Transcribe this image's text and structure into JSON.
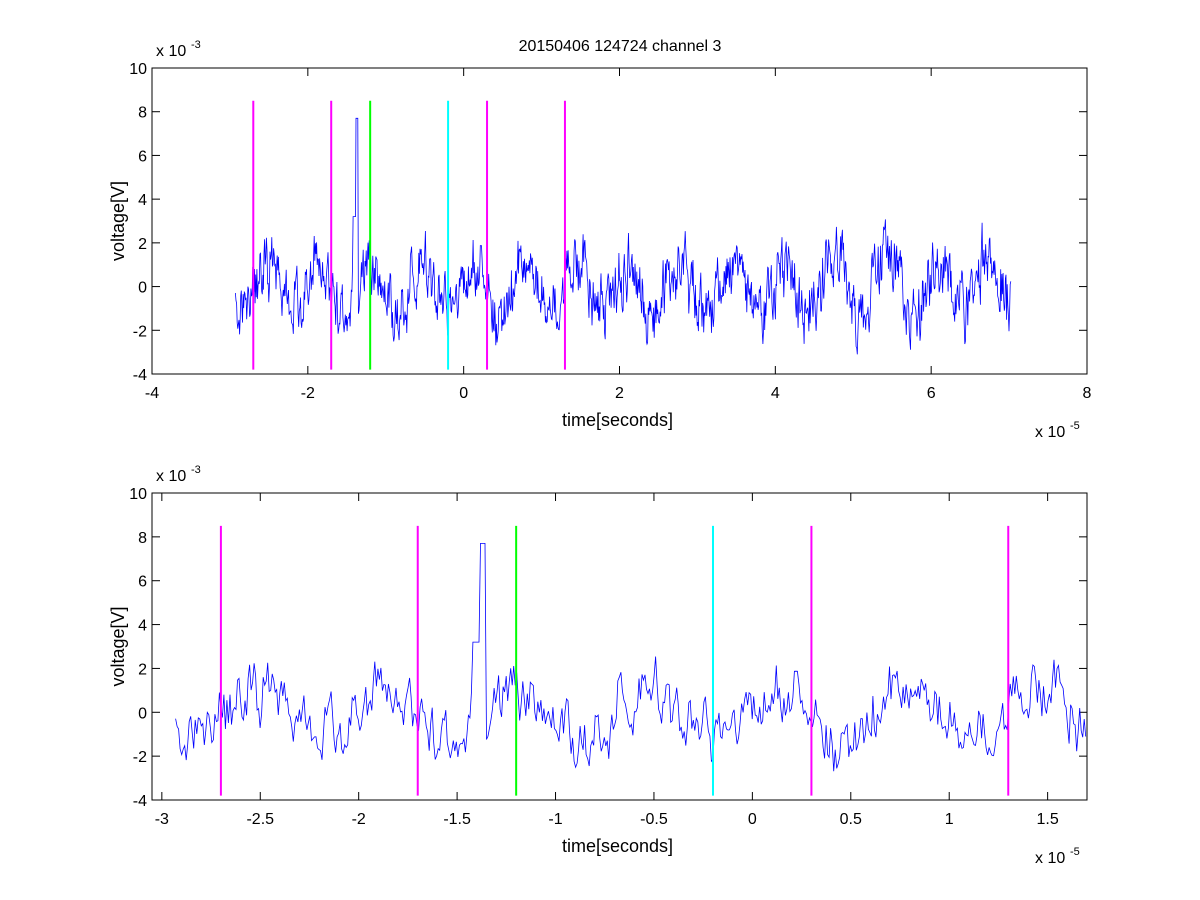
{
  "figure": {
    "title": "20150406 124724 channel 3"
  },
  "chart_data": [
    {
      "type": "line",
      "xlabel": "time[seconds]",
      "ylabel": "voltage[V]",
      "x_exponent_label": "x 10",
      "x_exponent": "-5",
      "y_exponent_label": "x 10",
      "y_exponent": "-3",
      "xlim": [
        -4,
        8
      ],
      "ylim": [
        -4,
        10
      ],
      "xticks": [
        -4,
        -2,
        0,
        2,
        4,
        6,
        8
      ],
      "xtick_labels": [
        "-4",
        "-2",
        "0",
        "2",
        "4",
        "6",
        "8"
      ],
      "yticks": [
        -4,
        -2,
        0,
        2,
        4,
        6,
        8,
        10
      ],
      "ytick_labels": [
        "-4",
        "-2",
        "0",
        "2",
        "4",
        "6",
        "8",
        "10"
      ],
      "grid": false,
      "series": [
        {
          "color": "#0000ff",
          "x_range": [
            -2.93,
            7.03
          ],
          "y_range": [
            -3.5,
            7.7
          ]
        }
      ],
      "markers": [
        {
          "x": -2.7,
          "color": "#ff00ff",
          "y_range": [
            -3.8,
            8.5
          ]
        },
        {
          "x": -1.7,
          "color": "#ff00ff",
          "y_range": [
            -3.8,
            8.5
          ]
        },
        {
          "x": -1.2,
          "color": "#00ff00",
          "y_range": [
            -3.8,
            8.5
          ]
        },
        {
          "x": -0.2,
          "color": "#00ffff",
          "y_range": [
            -3.8,
            8.5
          ]
        },
        {
          "x": 0.3,
          "color": "#ff00ff",
          "y_range": [
            -3.8,
            8.5
          ]
        },
        {
          "x": 1.3,
          "color": "#ff00ff",
          "y_range": [
            -3.8,
            8.5
          ]
        }
      ]
    },
    {
      "type": "line",
      "xlabel": "time[seconds]",
      "ylabel": "voltage[V]",
      "x_exponent_label": "x 10",
      "x_exponent": "-5",
      "y_exponent_label": "x 10",
      "y_exponent": "-3",
      "xlim": [
        -3.05,
        1.7
      ],
      "ylim": [
        -4,
        10
      ],
      "xticks": [
        -3,
        -2.5,
        -2,
        -1.5,
        -1,
        -0.5,
        0,
        0.5,
        1,
        1.5
      ],
      "xtick_labels": [
        "-3",
        "-2.5",
        "-2",
        "-1.5",
        "-1",
        "-0.5",
        "0",
        "0.5",
        "1",
        "1.5"
      ],
      "yticks": [
        -4,
        -2,
        0,
        2,
        4,
        6,
        8,
        10
      ],
      "ytick_labels": [
        "-4",
        "-2",
        "0",
        "2",
        "4",
        "6",
        "8",
        "10"
      ],
      "grid": false,
      "series": [
        {
          "color": "#0000ff",
          "x_range": [
            -2.95,
            1.7
          ],
          "y_range": [
            -3.3,
            7.7
          ]
        }
      ],
      "markers": [
        {
          "x": -2.7,
          "color": "#ff00ff",
          "y_range": [
            -3.8,
            8.5
          ]
        },
        {
          "x": -1.7,
          "color": "#ff00ff",
          "y_range": [
            -3.8,
            8.5
          ]
        },
        {
          "x": -1.2,
          "color": "#00ff00",
          "y_range": [
            -3.8,
            8.5
          ]
        },
        {
          "x": -0.2,
          "color": "#00ffff",
          "y_range": [
            -3.8,
            8.5
          ]
        },
        {
          "x": 0.3,
          "color": "#ff00ff",
          "y_range": [
            -3.8,
            8.5
          ]
        },
        {
          "x": 1.3,
          "color": "#ff00ff",
          "y_range": [
            -3.8,
            8.5
          ]
        }
      ]
    }
  ]
}
